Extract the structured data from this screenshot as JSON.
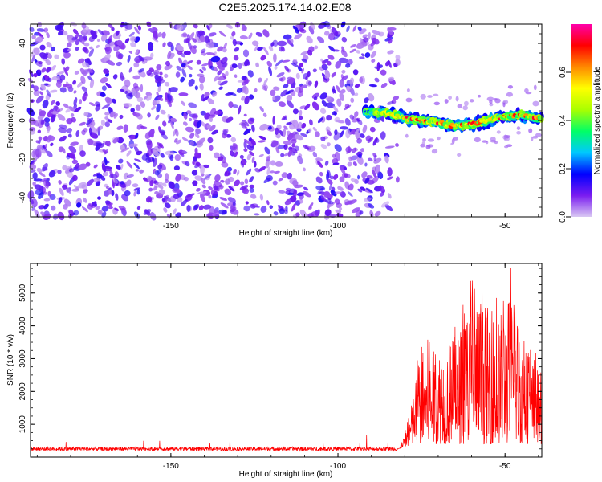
{
  "title": "C2E5.2025.174.14.02.E08",
  "chart_data": [
    {
      "type": "heatmap",
      "xlabel": "Height of straight line (km)",
      "ylabel": "Frequency (Hz)",
      "xlim": [
        -192,
        -39
      ],
      "ylim": [
        -50,
        50
      ],
      "xticks": [
        "-150",
        "-100",
        "-50"
      ],
      "yticks": [
        "-40",
        "-20",
        "0",
        "20",
        "40"
      ],
      "colorbar": {
        "label": "Normalized spectral amplitude",
        "range": [
          0,
          0.8
        ],
        "ticks": [
          "0.0",
          "0.2",
          "0.4",
          "0.6"
        ],
        "colormap": [
          "#d9c8f3",
          "#7a1cf0",
          "#0000ff",
          "#00c8ff",
          "#00ff66",
          "#aaff00",
          "#ffff00",
          "#ff8800",
          "#ff0000",
          "#ff00aa"
        ]
      },
      "noise_region_km": [
        -192,
        -82
      ],
      "signal_band": {
        "x_start_km": -92,
        "x_end_km": -39,
        "center_freq_hz": [
          [
            -92,
            4
          ],
          [
            -85,
            4
          ],
          [
            -80,
            1
          ],
          [
            -75,
            0
          ],
          [
            -70,
            -1
          ],
          [
            -65,
            -3
          ],
          [
            -60,
            -2
          ],
          [
            -55,
            0
          ],
          [
            -50,
            2
          ],
          [
            -45,
            3
          ],
          [
            -40,
            1
          ]
        ],
        "half_width_hz": 3,
        "peak_amplitude": 0.78
      }
    },
    {
      "type": "line",
      "series": [
        {
          "color": "#ff0000"
        }
      ],
      "xlabel": "Height of straight line (km)",
      "ylabel": "SNR (10 * v/v)",
      "xlim": [
        -192,
        -39
      ],
      "ylim": [
        0,
        5900
      ],
      "xticks": [
        "-150",
        "-100",
        "-50"
      ],
      "yticks": [
        "1000",
        "2000",
        "3000",
        "4000",
        "5000"
      ],
      "profile": {
        "baseline_snr": 250,
        "baseline_spread": 120,
        "rise_start_km": -82,
        "rise_end_km": -76,
        "envelope_peaks": [
          [
            -76,
            3300
          ],
          [
            -72,
            3700
          ],
          [
            -68,
            4000
          ],
          [
            -64,
            4400
          ],
          [
            -60,
            5700
          ],
          [
            -56,
            5400
          ],
          [
            -52,
            5000
          ],
          [
            -48,
            5900
          ],
          [
            -44,
            4000
          ],
          [
            -40,
            3000
          ]
        ],
        "minimum_snr_high_region": 400
      }
    }
  ]
}
